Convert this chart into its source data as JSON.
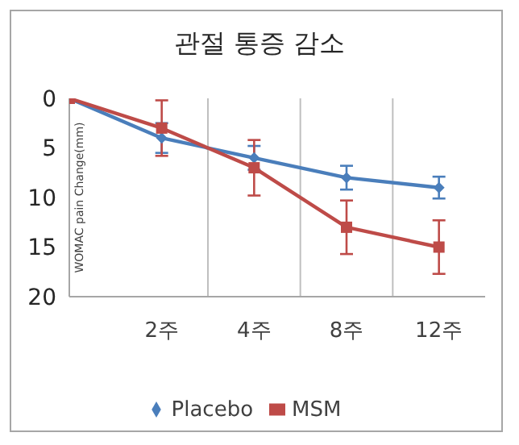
{
  "chart_data": {
    "type": "line",
    "title": "관절 통증 감소",
    "ylabel": "WOMAC pain Change(mm)",
    "categories": [
      null,
      "2주",
      "4주",
      "8주",
      "12주"
    ],
    "ylim": [
      20,
      0
    ],
    "yticks": [
      0,
      5,
      10,
      15,
      20
    ],
    "series": [
      {
        "name": "Placebo",
        "color": "#4a7ebb",
        "marker": "diamond",
        "values": [
          0,
          4,
          6,
          8,
          9
        ],
        "errors": [
          null,
          1.5,
          1.2,
          1.2,
          1.1
        ]
      },
      {
        "name": "MSM",
        "color": "#be4b48",
        "marker": "square",
        "values": [
          0,
          3,
          7,
          13,
          15
        ],
        "errors": [
          null,
          2.8,
          2.8,
          2.7,
          2.7
        ]
      }
    ],
    "legend": "bottom",
    "grid": "x"
  }
}
